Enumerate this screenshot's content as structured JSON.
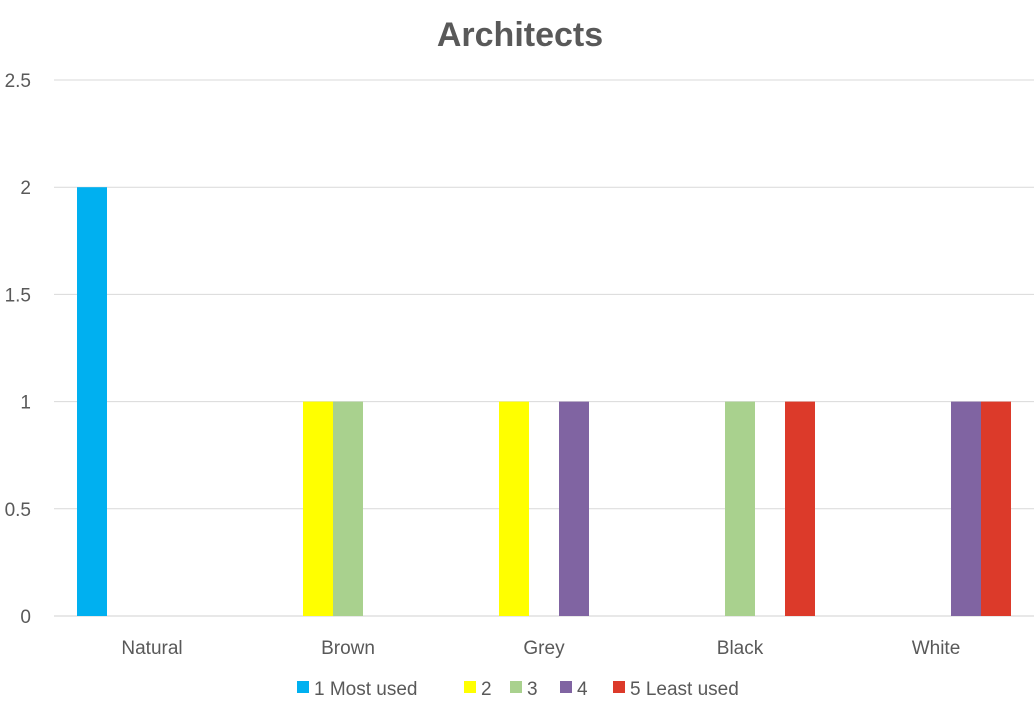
{
  "chart_data": {
    "type": "bar",
    "title": "Architects",
    "xlabel": "",
    "ylabel": "",
    "categories": [
      "Natural",
      "Brown",
      "Grey",
      "Black",
      "White"
    ],
    "series": [
      {
        "name": "1 Most used",
        "color": "#00B0F0",
        "values": [
          2,
          0,
          0,
          0,
          0
        ]
      },
      {
        "name": "2",
        "color": "#FFFF00",
        "values": [
          0,
          1,
          1,
          0,
          0
        ]
      },
      {
        "name": "3",
        "color": "#A9D18E",
        "values": [
          0,
          1,
          0,
          1,
          0
        ]
      },
      {
        "name": "4",
        "color": "#8064A2",
        "values": [
          0,
          0,
          1,
          0,
          1
        ]
      },
      {
        "name": "5 Least used",
        "color": "#DC3A2A",
        "values": [
          0,
          0,
          0,
          1,
          1
        ]
      }
    ],
    "ylim": [
      0,
      2.5
    ],
    "yticks": [
      "0",
      "0.5",
      "1",
      "1.5",
      "2",
      "2.5"
    ],
    "grid": true,
    "legend": "bottom"
  }
}
